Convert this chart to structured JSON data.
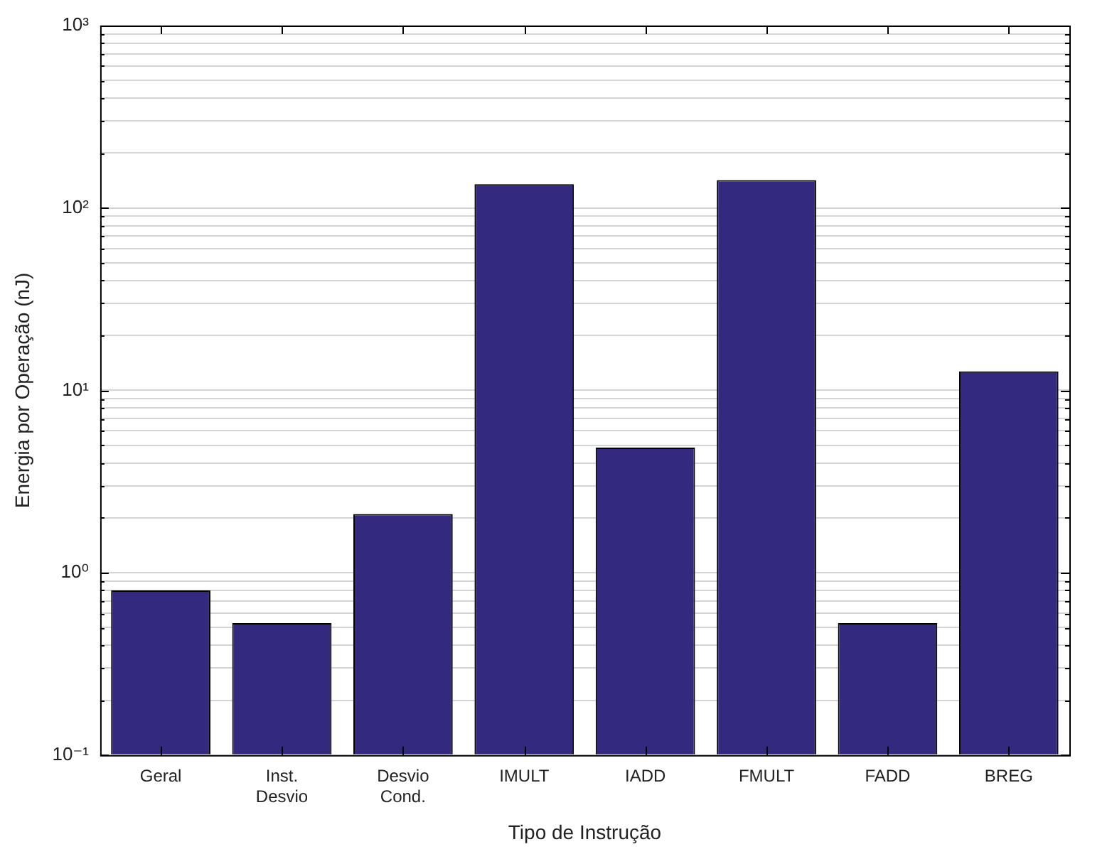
{
  "chart_data": {
    "type": "bar",
    "xlabel": "Tipo de Instrução",
    "ylabel": "Energia por Operação (nJ)",
    "categories": [
      "Geral",
      "Inst.\nDesvio",
      "Desvio\nCond.",
      "IMULT",
      "IADD",
      "FMULT",
      "FADD",
      "BREG"
    ],
    "values": [
      0.8,
      0.53,
      2.1,
      135,
      4.85,
      142,
      0.53,
      12.7
    ],
    "color": "#332a80",
    "log": true,
    "ylim": [
      0.1,
      1000
    ],
    "yticks": [
      {
        "value": 0.1,
        "label": "10⁻¹"
      },
      {
        "value": 0.2,
        "label": null
      },
      {
        "value": 0.3,
        "label": null
      },
      {
        "value": 0.4,
        "label": null
      },
      {
        "value": 0.5,
        "label": null
      },
      {
        "value": 0.6,
        "label": null
      },
      {
        "value": 0.7,
        "label": null
      },
      {
        "value": 0.8,
        "label": null
      },
      {
        "value": 0.9,
        "label": null
      },
      {
        "value": 1,
        "label": "10⁰"
      },
      {
        "value": 2,
        "label": null
      },
      {
        "value": 3,
        "label": null
      },
      {
        "value": 4,
        "label": null
      },
      {
        "value": 5,
        "label": null
      },
      {
        "value": 6,
        "label": null
      },
      {
        "value": 7,
        "label": null
      },
      {
        "value": 8,
        "label": null
      },
      {
        "value": 9,
        "label": null
      },
      {
        "value": 10,
        "label": "10¹"
      },
      {
        "value": 20,
        "label": null
      },
      {
        "value": 30,
        "label": null
      },
      {
        "value": 40,
        "label": null
      },
      {
        "value": 50,
        "label": null
      },
      {
        "value": 60,
        "label": null
      },
      {
        "value": 70,
        "label": null
      },
      {
        "value": 80,
        "label": null
      },
      {
        "value": 90,
        "label": null
      },
      {
        "value": 100,
        "label": "10²"
      },
      {
        "value": 200,
        "label": null
      },
      {
        "value": 300,
        "label": null
      },
      {
        "value": 400,
        "label": null
      },
      {
        "value": 500,
        "label": null
      },
      {
        "value": 600,
        "label": null
      },
      {
        "value": 700,
        "label": null
      },
      {
        "value": 800,
        "label": null
      },
      {
        "value": 900,
        "label": null
      },
      {
        "value": 1000,
        "label": "10³"
      }
    ],
    "grid": "y",
    "legend": false
  }
}
